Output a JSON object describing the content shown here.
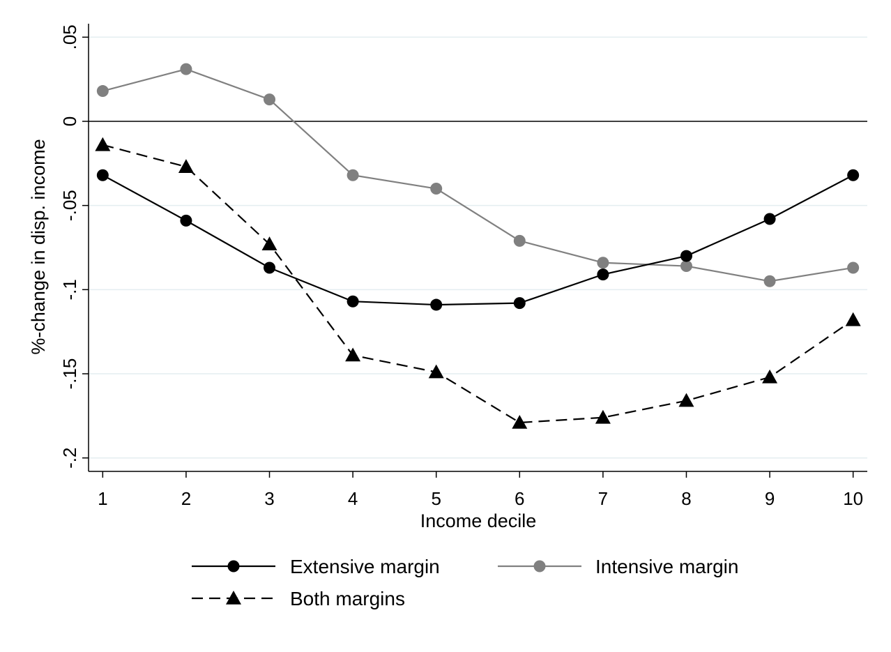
{
  "chart_data": {
    "type": "line",
    "title": "",
    "xlabel": "Income decile",
    "ylabel": "%-change in disp. income",
    "x": [
      1,
      2,
      3,
      4,
      5,
      6,
      7,
      8,
      9,
      10
    ],
    "x_tick_labels": [
      "1",
      "2",
      "3",
      "4",
      "5",
      "6",
      "7",
      "8",
      "9",
      "10"
    ],
    "y_ticks": [
      0.05,
      0,
      -0.05,
      -0.1,
      -0.15,
      -0.2
    ],
    "y_tick_labels": [
      ".05",
      "0",
      "-.05",
      "-.1",
      "-.15",
      "-.2"
    ],
    "xlim": [
      0.83,
      10.17
    ],
    "ylim": [
      -0.208,
      0.058
    ],
    "reference_line_y": 0,
    "grid": "horizontal",
    "legend_position": "bottom",
    "series": [
      {
        "name": "Extensive margin",
        "color": "#000000",
        "line_style": "solid",
        "marker": "circle",
        "values": [
          -0.032,
          -0.059,
          -0.087,
          -0.107,
          -0.109,
          -0.108,
          -0.091,
          -0.08,
          -0.058,
          -0.032
        ]
      },
      {
        "name": "Intensive margin",
        "color": "#808080",
        "line_style": "solid",
        "marker": "circle",
        "values": [
          0.018,
          0.031,
          0.013,
          -0.032,
          -0.04,
          -0.071,
          -0.084,
          -0.086,
          -0.095,
          -0.087
        ]
      },
      {
        "name": "Both margins",
        "color": "#000000",
        "line_style": "dashed",
        "marker": "triangle",
        "values": [
          -0.014,
          -0.027,
          -0.073,
          -0.139,
          -0.149,
          -0.179,
          -0.176,
          -0.166,
          -0.152,
          -0.118
        ]
      }
    ]
  }
}
